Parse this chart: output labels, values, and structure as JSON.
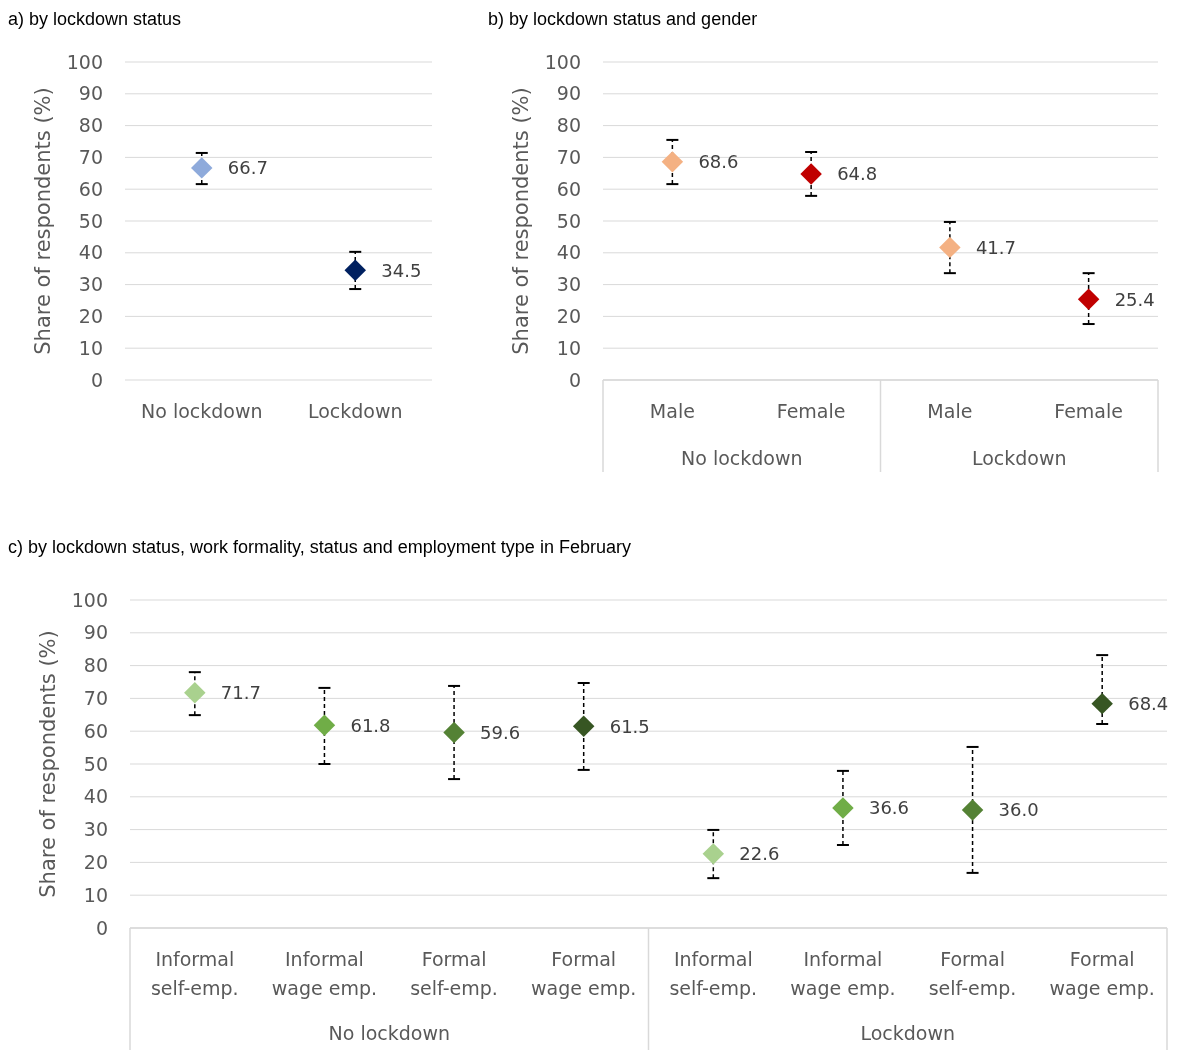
{
  "chart_data": [
    {
      "type": "scatter",
      "title": "a) by lockdown status",
      "ylabel": "Share of respondents (%)",
      "categories": [
        "No lockdown",
        "Lockdown"
      ],
      "values": [
        66.7,
        34.5
      ],
      "colors": [
        "#8eaadb",
        "#002060"
      ],
      "errors": [
        [
          61.6,
          71.4
        ],
        [
          28.6,
          40.3
        ]
      ],
      "ylim": [
        0,
        100
      ],
      "yticks": [
        0,
        10,
        20,
        30,
        40,
        50,
        60,
        70,
        80,
        90,
        100
      ],
      "grid": "y",
      "marker": "diamond",
      "data_labels": true
    },
    {
      "type": "scatter",
      "title": "b) by lockdown status and gender",
      "ylabel": "Share of respondents (%)",
      "categories": [
        "Male",
        "Female",
        "Male",
        "Female"
      ],
      "values": [
        68.6,
        64.8,
        41.7,
        25.4
      ],
      "colors": [
        "#f4b183",
        "#c00000",
        "#f4b183",
        "#c00000"
      ],
      "errors": [
        [
          61.6,
          75.5
        ],
        [
          57.9,
          71.7
        ],
        [
          33.6,
          49.7
        ],
        [
          17.6,
          33.6
        ]
      ],
      "annotations": [
        "No lockdown",
        "Lockdown"
      ],
      "ylim": [
        0,
        100
      ],
      "yticks": [
        0,
        10,
        20,
        30,
        40,
        50,
        60,
        70,
        80,
        90,
        100
      ],
      "grid": "y",
      "marker": "diamond",
      "data_labels": true
    },
    {
      "type": "scatter",
      "title": "c) by lockdown status, work formality, status and employment type in February",
      "ylabel": "Share of respondents (%)",
      "categories": [
        "Informal\nself-emp.",
        "Informal\nwage emp.",
        "Formal\nself-emp.",
        "Formal\nwage emp.",
        "Informal\nself-emp.",
        "Informal\nwage emp.",
        "Formal\nself-emp.",
        "Formal\nwage emp."
      ],
      "values": [
        71.7,
        61.8,
        59.6,
        61.5,
        22.6,
        36.6,
        36.0,
        68.4
      ],
      "value_labels": [
        "71.7",
        "61.8",
        "59.6",
        "61.5",
        "22.6",
        "36.6",
        "36.0",
        "68.4"
      ],
      "colors": [
        "#a9d18e",
        "#70ad47",
        "#548235",
        "#375623",
        "#a9d18e",
        "#70ad47",
        "#548235",
        "#375623"
      ],
      "errors": [
        [
          64.9,
          78.0
        ],
        [
          50.0,
          73.2
        ],
        [
          45.4,
          73.8
        ],
        [
          48.2,
          74.7
        ],
        [
          15.2,
          29.9
        ],
        [
          25.3,
          47.9
        ],
        [
          16.8,
          55.2
        ],
        [
          62.2,
          83.2
        ]
      ],
      "annotations": [
        "No lockdown",
        "Lockdown"
      ],
      "ylim": [
        0,
        100
      ],
      "yticks": [
        0,
        10,
        20,
        30,
        40,
        50,
        60,
        70,
        80,
        90,
        100
      ],
      "grid": "y",
      "marker": "diamond"
    }
  ]
}
